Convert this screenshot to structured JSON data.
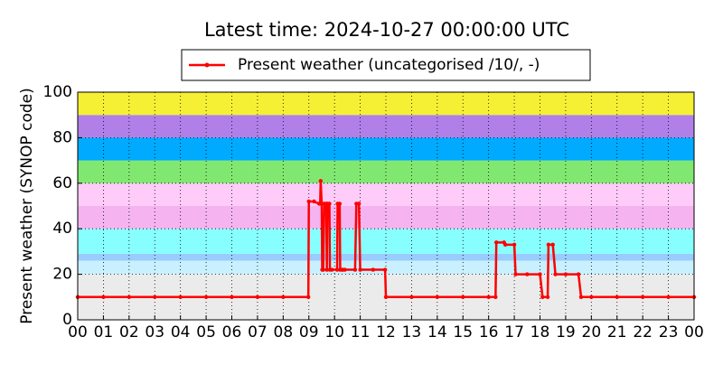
{
  "chart_data": {
    "type": "line",
    "title": "Latest time: 2024-10-27 00:00:00 UTC",
    "y_label": "Present weather (SYNOP code)",
    "xlim": [
      0,
      24
    ],
    "ylim": [
      0,
      100
    ],
    "xticks": [
      {
        "value": 0,
        "label": "00"
      },
      {
        "value": 1,
        "label": "01"
      },
      {
        "value": 2,
        "label": "02"
      },
      {
        "value": 3,
        "label": "03"
      },
      {
        "value": 4,
        "label": "04"
      },
      {
        "value": 5,
        "label": "05"
      },
      {
        "value": 6,
        "label": "06"
      },
      {
        "value": 7,
        "label": "07"
      },
      {
        "value": 8,
        "label": "08"
      },
      {
        "value": 9,
        "label": "09"
      },
      {
        "value": 10,
        "label": "10"
      },
      {
        "value": 11,
        "label": "11"
      },
      {
        "value": 12,
        "label": "12"
      },
      {
        "value": 13,
        "label": "13"
      },
      {
        "value": 14,
        "label": "14"
      },
      {
        "value": 15,
        "label": "15"
      },
      {
        "value": 16,
        "label": "16"
      },
      {
        "value": 17,
        "label": "17"
      },
      {
        "value": 18,
        "label": "18"
      },
      {
        "value": 19,
        "label": "19"
      },
      {
        "value": 20,
        "label": "20"
      },
      {
        "value": 21,
        "label": "21"
      },
      {
        "value": 22,
        "label": "22"
      },
      {
        "value": 23,
        "label": "23"
      },
      {
        "value": 24,
        "label": "00"
      }
    ],
    "yticks": [
      0,
      20,
      40,
      60,
      80,
      100
    ],
    "grid": true,
    "legend": "top",
    "bands": [
      {
        "range": [
          0,
          20
        ],
        "color": "#ebebeb"
      },
      {
        "range": [
          20,
          26
        ],
        "color": "#c8f0ff"
      },
      {
        "range": [
          26,
          29
        ],
        "color": "#99ccff"
      },
      {
        "range": [
          29,
          40
        ],
        "color": "#88ffff"
      },
      {
        "range": [
          40,
          50
        ],
        "color": "#f5b4f0"
      },
      {
        "range": [
          50,
          60
        ],
        "color": "#ffccfa"
      },
      {
        "range": [
          60,
          70
        ],
        "color": "#80e870"
      },
      {
        "range": [
          70,
          80
        ],
        "color": "#00aaff"
      },
      {
        "range": [
          80,
          90
        ],
        "color": "#b080e8"
      },
      {
        "range": [
          90,
          100
        ],
        "color": "#f5f033"
      }
    ],
    "series": [
      {
        "name": "Present weather (uncategorised /10/, -)",
        "color": "#ff0000",
        "x": [
          0,
          1,
          2,
          3,
          4,
          5,
          6,
          7,
          8,
          8.98,
          9.0,
          9.2,
          9.4,
          9.44,
          9.46,
          9.5,
          9.52,
          9.56,
          9.6,
          9.68,
          9.7,
          9.72,
          9.8,
          9.82,
          9.9,
          10.1,
          10.12,
          10.2,
          10.22,
          10.3,
          10.32,
          10.4,
          10.8,
          10.85,
          10.95,
          11.0,
          11.5,
          11.97,
          12.0,
          13,
          14,
          15,
          16,
          16.27,
          16.3,
          16.6,
          16.65,
          17.0,
          17.05,
          17.5,
          18.0,
          18.1,
          18.3,
          18.33,
          18.5,
          18.6,
          19.0,
          19.5,
          19.6,
          20,
          21,
          22,
          23,
          24
        ],
        "values": [
          10,
          10,
          10,
          10,
          10,
          10,
          10,
          10,
          10,
          10,
          52,
          52,
          51,
          51,
          61,
          51,
          22,
          22,
          51,
          51,
          22,
          51,
          51,
          22,
          22,
          22,
          51,
          51,
          22,
          22,
          22,
          22,
          22,
          51,
          51,
          22,
          22,
          22,
          10,
          10,
          10,
          10,
          10,
          10,
          34,
          34,
          33,
          33,
          20,
          20,
          20,
          10,
          10,
          33,
          33,
          20,
          20,
          20,
          10,
          10,
          10,
          10,
          10,
          10
        ]
      }
    ]
  }
}
